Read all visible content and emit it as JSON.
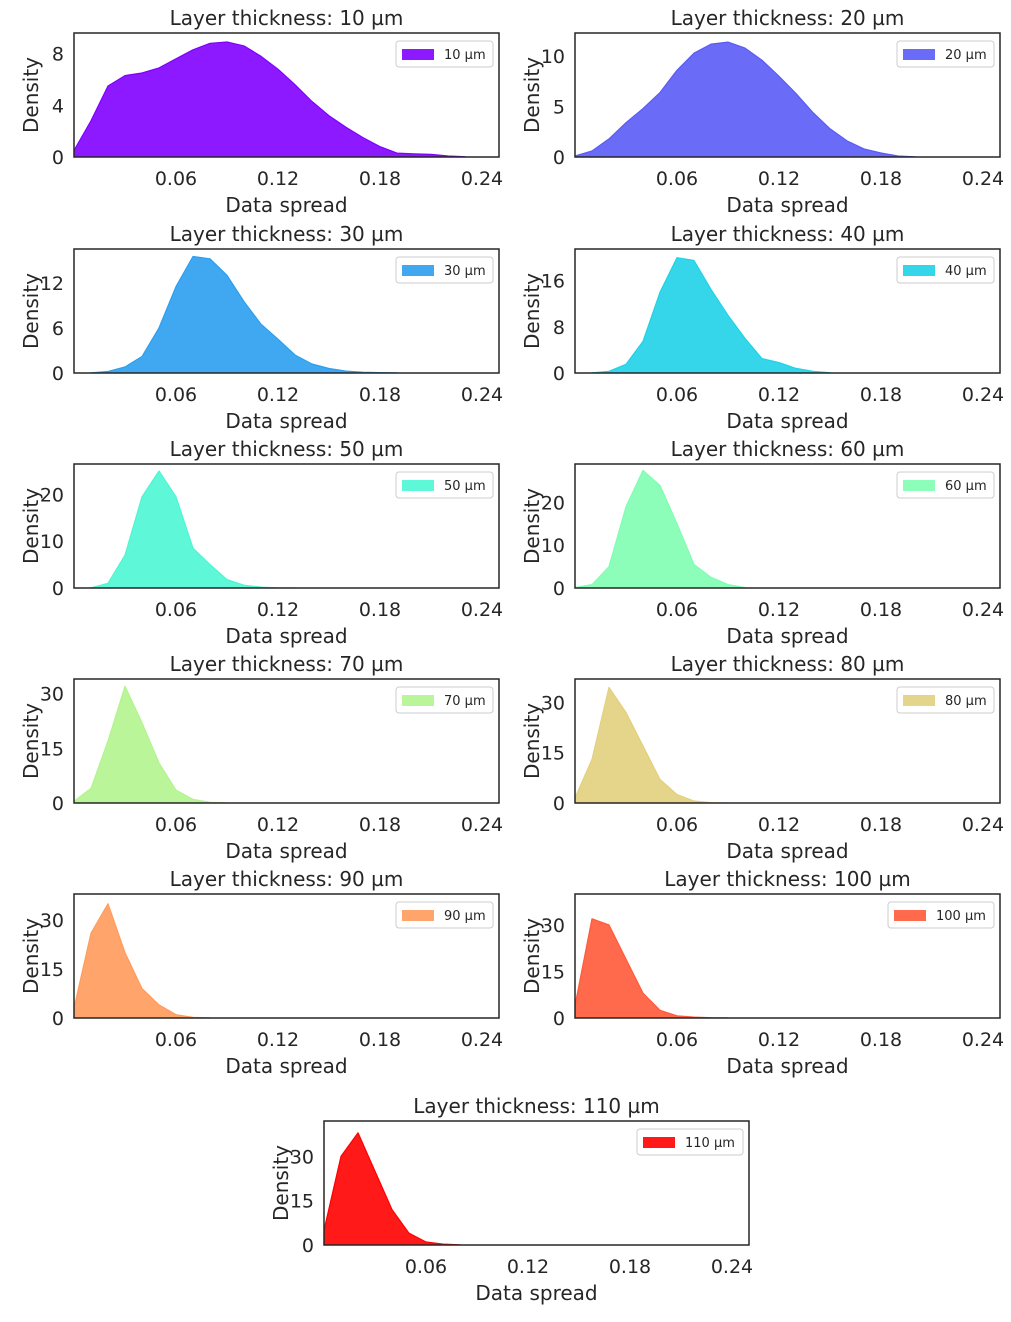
{
  "chart_data": [
    {
      "type": "area",
      "title": "Layer thickness: 10 µm",
      "xlabel": "Data spread",
      "ylabel": "Density",
      "xlim": [
        0,
        0.25
      ],
      "xticks": [
        0.06,
        0.12,
        0.18,
        0.24
      ],
      "ylim": [
        0,
        9.6
      ],
      "yticks": [
        0,
        4,
        8
      ],
      "legend": "10 µm",
      "legend_position": "top-right",
      "color": "#8000ff",
      "x": [
        0.0,
        0.01,
        0.02,
        0.03,
        0.04,
        0.05,
        0.06,
        0.07,
        0.08,
        0.09,
        0.1,
        0.11,
        0.12,
        0.13,
        0.14,
        0.15,
        0.16,
        0.17,
        0.18,
        0.19,
        0.2,
        0.21,
        0.22,
        0.23
      ],
      "y": [
        0.5,
        2.8,
        5.5,
        6.3,
        6.5,
        6.9,
        7.6,
        8.3,
        8.8,
        8.9,
        8.6,
        7.8,
        6.8,
        5.6,
        4.3,
        3.2,
        2.3,
        1.5,
        0.8,
        0.3,
        0.25,
        0.2,
        0.08,
        0.02
      ]
    },
    {
      "type": "area",
      "title": "Layer thickness: 20 µm",
      "xlabel": "Data spread",
      "ylabel": "Density",
      "xlim": [
        0,
        0.25
      ],
      "xticks": [
        0.06,
        0.12,
        0.18,
        0.24
      ],
      "ylim": [
        0,
        12.3
      ],
      "yticks": [
        0,
        5,
        10
      ],
      "legend": "20 µm",
      "legend_position": "top-right",
      "color": "#5a5bf5",
      "x": [
        0.0,
        0.01,
        0.02,
        0.03,
        0.04,
        0.05,
        0.06,
        0.07,
        0.08,
        0.09,
        0.1,
        0.11,
        0.12,
        0.13,
        0.14,
        0.15,
        0.16,
        0.17,
        0.18,
        0.19,
        0.2
      ],
      "y": [
        0.1,
        0.6,
        1.8,
        3.4,
        4.8,
        6.4,
        8.6,
        10.3,
        11.2,
        11.4,
        10.8,
        9.6,
        8.0,
        6.3,
        4.4,
        2.8,
        1.6,
        0.8,
        0.4,
        0.1,
        0.02
      ]
    },
    {
      "type": "area",
      "title": "Layer thickness: 30 µm",
      "xlabel": "Data spread",
      "ylabel": "Density",
      "xlim": [
        0,
        0.25
      ],
      "xticks": [
        0.06,
        0.12,
        0.18,
        0.24
      ],
      "ylim": [
        0,
        16.5
      ],
      "yticks": [
        0,
        6,
        12
      ],
      "legend": "30 µm",
      "legend_position": "top-right",
      "color": "#2b9fef",
      "x": [
        0.01,
        0.02,
        0.03,
        0.04,
        0.05,
        0.06,
        0.07,
        0.08,
        0.09,
        0.1,
        0.11,
        0.12,
        0.13,
        0.14,
        0.15,
        0.16,
        0.17,
        0.18,
        0.19
      ],
      "y": [
        0.02,
        0.2,
        0.8,
        2.2,
        6.0,
        11.5,
        15.5,
        15.2,
        13.0,
        9.5,
        6.5,
        4.5,
        2.4,
        1.2,
        0.6,
        0.25,
        0.1,
        0.05,
        0.02
      ]
    },
    {
      "type": "area",
      "title": "Layer thickness: 40 µm",
      "xlabel": "Data spread",
      "ylabel": "Density",
      "xlim": [
        0,
        0.25
      ],
      "xticks": [
        0.06,
        0.12,
        0.18,
        0.24
      ],
      "ylim": [
        0,
        21.5
      ],
      "yticks": [
        0,
        8,
        16
      ],
      "legend": "40 µm",
      "legend_position": "top-right",
      "color": "#1fd2e7",
      "x": [
        0.01,
        0.02,
        0.03,
        0.04,
        0.05,
        0.06,
        0.07,
        0.08,
        0.09,
        0.1,
        0.11,
        0.12,
        0.13,
        0.14,
        0.15
      ],
      "y": [
        0.02,
        0.3,
        1.5,
        5.5,
        14.0,
        20.0,
        19.5,
        14.5,
        10.0,
        6.0,
        2.5,
        1.8,
        0.8,
        0.3,
        0.05
      ]
    },
    {
      "type": "area",
      "title": "Layer thickness: 50 µm",
      "xlabel": "Data spread",
      "ylabel": "Density",
      "xlim": [
        0,
        0.25
      ],
      "xticks": [
        0.06,
        0.12,
        0.18,
        0.24
      ],
      "ylim": [
        0,
        26.5
      ],
      "yticks": [
        0,
        10,
        20
      ],
      "legend": "50 µm",
      "legend_position": "top-right",
      "color": "#4df6d3",
      "x": [
        0.01,
        0.02,
        0.03,
        0.04,
        0.05,
        0.06,
        0.07,
        0.08,
        0.09,
        0.1,
        0.11,
        0.12,
        0.13
      ],
      "y": [
        0.05,
        1.0,
        7.0,
        19.5,
        25.0,
        19.5,
        8.5,
        5.0,
        1.8,
        0.6,
        0.2,
        0.05,
        0.01
      ]
    },
    {
      "type": "area",
      "title": "Layer thickness: 60 µm",
      "xlabel": "Data spread",
      "ylabel": "Density",
      "xlim": [
        0,
        0.25
      ],
      "xticks": [
        0.06,
        0.12,
        0.18,
        0.24
      ],
      "ylim": [
        0,
        29
      ],
      "yticks": [
        0,
        10,
        20
      ],
      "legend": "60 µm",
      "legend_position": "top-right",
      "color": "#7ffeb2",
      "x": [
        0.0,
        0.01,
        0.02,
        0.03,
        0.04,
        0.05,
        0.06,
        0.07,
        0.08,
        0.09,
        0.1
      ],
      "y": [
        0.1,
        0.8,
        5.0,
        19.0,
        27.5,
        24.0,
        15.0,
        5.5,
        2.5,
        0.8,
        0.1
      ]
    },
    {
      "type": "area",
      "title": "Layer thickness: 70 µm",
      "xlabel": "Data spread",
      "ylabel": "Density",
      "xlim": [
        0,
        0.25
      ],
      "xticks": [
        0.06,
        0.12,
        0.18,
        0.24
      ],
      "ylim": [
        0,
        34
      ],
      "yticks": [
        0,
        15,
        30
      ],
      "legend": "70 µm",
      "legend_position": "top-right",
      "color": "#b2f48e",
      "x": [
        0.0,
        0.01,
        0.02,
        0.03,
        0.04,
        0.05,
        0.06,
        0.07,
        0.08,
        0.09
      ],
      "y": [
        0.5,
        4.0,
        17.0,
        32.0,
        22.0,
        11.0,
        3.5,
        1.0,
        0.2,
        0.02
      ]
    },
    {
      "type": "area",
      "title": "Layer thickness: 80 µm",
      "xlabel": "Data spread",
      "ylabel": "Density",
      "xlim": [
        0,
        0.25
      ],
      "xticks": [
        0.06,
        0.12,
        0.18,
        0.24
      ],
      "ylim": [
        0,
        37
      ],
      "yticks": [
        0,
        15,
        30
      ],
      "legend": "80 µm",
      "legend_position": "top-right",
      "color": "#e2d07d",
      "x": [
        0.0,
        0.01,
        0.02,
        0.03,
        0.04,
        0.05,
        0.06,
        0.07,
        0.08,
        0.09
      ],
      "y": [
        1.5,
        13.0,
        34.5,
        27.0,
        17.0,
        7.0,
        2.5,
        0.6,
        0.1,
        0.01
      ]
    },
    {
      "type": "area",
      "title": "Layer thickness: 90 µm",
      "xlabel": "Data spread",
      "ylabel": "Density",
      "xlim": [
        0,
        0.25
      ],
      "xticks": [
        0.06,
        0.12,
        0.18,
        0.24
      ],
      "ylim": [
        0,
        38
      ],
      "yticks": [
        0,
        15,
        30
      ],
      "legend": "90 µm",
      "legend_position": "top-right",
      "color": "#ff9b5c",
      "x": [
        0.0,
        0.01,
        0.02,
        0.03,
        0.04,
        0.05,
        0.06,
        0.07,
        0.08
      ],
      "y": [
        3.0,
        26.0,
        35.0,
        20.0,
        9.0,
        4.0,
        1.0,
        0.2,
        0.02
      ]
    },
    {
      "type": "area",
      "title": "Layer thickness: 100 µm",
      "xlabel": "Data spread",
      "ylabel": "Density",
      "xlim": [
        0,
        0.25
      ],
      "xticks": [
        0.06,
        0.12,
        0.18,
        0.24
      ],
      "ylim": [
        0,
        40
      ],
      "yticks": [
        0,
        15,
        30
      ],
      "legend": "100 µm",
      "legend_position": "top-right",
      "color": "#ff5a3a",
      "x": [
        0.0,
        0.01,
        0.02,
        0.03,
        0.04,
        0.05,
        0.06,
        0.07,
        0.08,
        0.09
      ],
      "y": [
        4.0,
        32.0,
        30.0,
        19.0,
        8.0,
        2.5,
        0.7,
        0.3,
        0.1,
        0.02
      ]
    },
    {
      "type": "area",
      "title": "Layer thickness: 110 µm",
      "xlabel": "Data spread",
      "ylabel": "Density",
      "xlim": [
        0,
        0.25
      ],
      "xticks": [
        0.06,
        0.12,
        0.18,
        0.24
      ],
      "ylim": [
        0,
        42
      ],
      "yticks": [
        0,
        15,
        30
      ],
      "legend": "110 µm",
      "legend_position": "top-right",
      "color": "#ff0000",
      "x": [
        0.0,
        0.01,
        0.02,
        0.03,
        0.04,
        0.05,
        0.06,
        0.07,
        0.08
      ],
      "y": [
        5.0,
        30.0,
        38.0,
        25.0,
        12.0,
        4.0,
        1.0,
        0.3,
        0.05
      ]
    }
  ]
}
